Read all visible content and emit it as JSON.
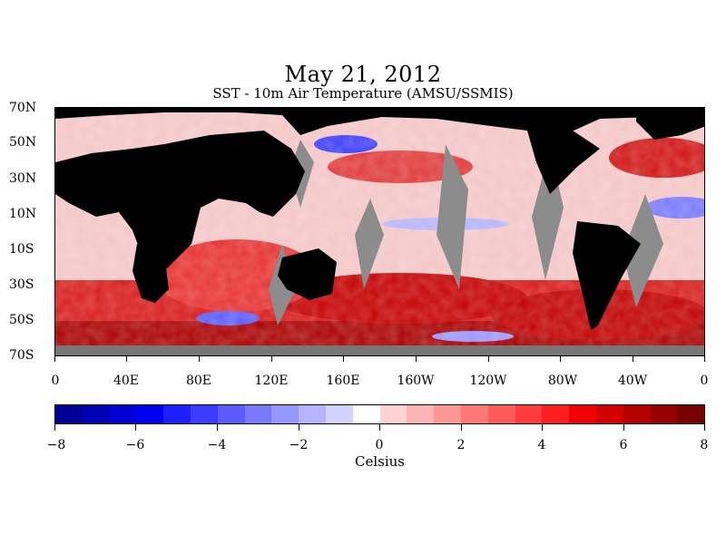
{
  "header": {
    "title": "May 21, 2012",
    "subtitle": "SST - 10m Air Temperature (AMSU/SSMIS)"
  },
  "map": {
    "lat_labels": [
      "70N",
      "50N",
      "30N",
      "10N",
      "10S",
      "30S",
      "50S",
      "70S"
    ],
    "lon_labels": [
      "0",
      "40E",
      "80E",
      "120E",
      "160E",
      "160W",
      "120W",
      "80W",
      "40W",
      "0"
    ],
    "colors": {
      "land": "#000000",
      "missing": "#8c8c8c",
      "ocean_base": "#f2c2c2"
    }
  },
  "colorbar": {
    "colors": [
      "#000096",
      "#0000b4",
      "#0000d2",
      "#0000f0",
      "#1e1eff",
      "#3c3cff",
      "#5a5aff",
      "#7878ff",
      "#9696ff",
      "#b4b4ff",
      "#d2d2ff",
      "#ffffff",
      "#ffd2d2",
      "#ffb4b4",
      "#ff9696",
      "#ff7878",
      "#ff5a5a",
      "#ff3c3c",
      "#ff1e1e",
      "#f00000",
      "#d20000",
      "#b40000",
      "#960000",
      "#780000"
    ],
    "tick_labels": [
      "−8",
      "−6",
      "−4",
      "−2",
      "0",
      "2",
      "4",
      "6",
      "8"
    ],
    "unit": "Celsius"
  }
}
